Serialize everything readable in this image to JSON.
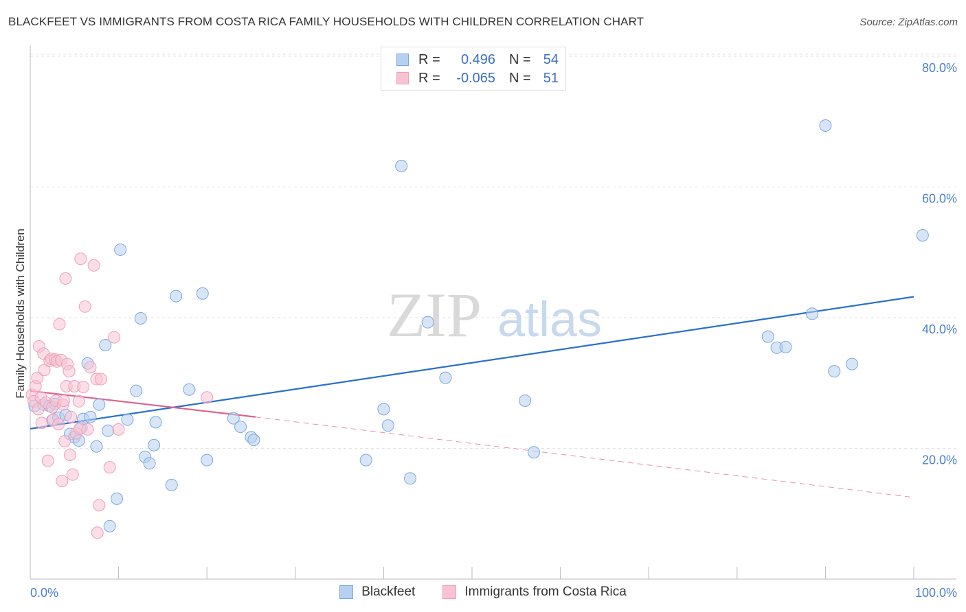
{
  "chart_data": {
    "type": "scatter",
    "title": "BLACKFEET VS IMMIGRANTS FROM COSTA RICA FAMILY HOUSEHOLDS WITH CHILDREN CORRELATION CHART",
    "source": "Source: ZipAtlas.com",
    "xlabel": "",
    "ylabel": "Family Households with Children",
    "xlim": [
      0,
      100
    ],
    "ylim": [
      0,
      85
    ],
    "x_tick_labels": {
      "left": "0.0%",
      "right": "100.0%"
    },
    "y_ticks": [
      {
        "value": 20,
        "label": "20.0%"
      },
      {
        "value": 40,
        "label": "40.0%"
      },
      {
        "value": 60,
        "label": "60.0%"
      },
      {
        "value": 80,
        "label": "80.0%"
      }
    ],
    "watermark": {
      "part1": "ZIP",
      "part2": "atlas"
    },
    "legend": [
      {
        "name": "Blackfeet",
        "r_label": "R =",
        "r_value": "0.496",
        "n_label": "N =",
        "n_value": "54"
      },
      {
        "name": "Immigrants from Costa Rica",
        "r_label": "R =",
        "r_value": "-0.065",
        "n_label": "N =",
        "n_value": "51"
      }
    ],
    "series": [
      {
        "name": "Blackfeet",
        "color": "#7aa8e0",
        "fill": "#b8d0ef",
        "trend": {
          "x1": 0,
          "y1": 23.0,
          "x2": 100,
          "y2": 43.2,
          "color": "#2a6fce"
        },
        "points": [
          [
            0.5,
            26.5
          ],
          [
            1.5,
            26.7
          ],
          [
            2.2,
            26.5
          ],
          [
            2.8,
            26.8
          ],
          [
            2.5,
            24.3
          ],
          [
            3.2,
            24.7
          ],
          [
            4.0,
            25.1
          ],
          [
            4.5,
            22.2
          ],
          [
            5.0,
            21.7
          ],
          [
            5.5,
            21.2
          ],
          [
            5.8,
            23.2
          ],
          [
            6.0,
            24.5
          ],
          [
            6.5,
            33.0
          ],
          [
            6.8,
            24.8
          ],
          [
            7.5,
            20.3
          ],
          [
            7.8,
            26.7
          ],
          [
            8.5,
            35.8
          ],
          [
            8.8,
            22.7
          ],
          [
            9.0,
            8.1
          ],
          [
            9.8,
            12.3
          ],
          [
            10.2,
            50.4
          ],
          [
            11.0,
            24.4
          ],
          [
            12.0,
            28.8
          ],
          [
            12.5,
            39.9
          ],
          [
            13.0,
            18.7
          ],
          [
            13.5,
            17.7
          ],
          [
            14.0,
            20.5
          ],
          [
            14.2,
            24.0
          ],
          [
            16.0,
            14.4
          ],
          [
            16.5,
            43.3
          ],
          [
            18.0,
            29.0
          ],
          [
            19.5,
            43.7
          ],
          [
            20.0,
            18.2
          ],
          [
            23.0,
            24.6
          ],
          [
            23.8,
            23.3
          ],
          [
            25.0,
            21.7
          ],
          [
            25.3,
            21.3
          ],
          [
            42.0,
            63.2
          ],
          [
            45.0,
            39.3
          ],
          [
            47.0,
            30.8
          ],
          [
            40.0,
            26.0
          ],
          [
            38.0,
            18.2
          ],
          [
            40.5,
            23.5
          ],
          [
            43.0,
            15.4
          ],
          [
            56.0,
            27.3
          ],
          [
            57.0,
            19.4
          ],
          [
            83.5,
            37.1
          ],
          [
            84.5,
            35.4
          ],
          [
            85.5,
            35.5
          ],
          [
            88.5,
            40.6
          ],
          [
            90.0,
            69.4
          ],
          [
            91.0,
            31.8
          ],
          [
            93.0,
            32.9
          ],
          [
            101.0,
            52.6
          ]
        ]
      },
      {
        "name": "Immigrants from Costa Rica",
        "color": "#f0a0b8",
        "fill": "#f7c3d3",
        "trend": {
          "x1": 0,
          "y1": 28.8,
          "x2": 25.5,
          "y2": 24.8,
          "color": "#e0608a"
        },
        "trend_dashed": {
          "x1": 25.5,
          "y1": 24.8,
          "x2": 100,
          "y2": 12.5,
          "color": "#e58fa9"
        },
        "points": [
          [
            0.2,
            28.2
          ],
          [
            0.4,
            27.2
          ],
          [
            0.6,
            29.5
          ],
          [
            0.8,
            30.8
          ],
          [
            0.9,
            26.0
          ],
          [
            1.0,
            35.6
          ],
          [
            1.2,
            27.8
          ],
          [
            1.3,
            23.9
          ],
          [
            1.5,
            34.5
          ],
          [
            1.6,
            32.0
          ],
          [
            1.8,
            27.0
          ],
          [
            2.0,
            18.1
          ],
          [
            2.2,
            33.4
          ],
          [
            2.4,
            33.7
          ],
          [
            2.5,
            26.3
          ],
          [
            2.6,
            24.4
          ],
          [
            2.8,
            33.6
          ],
          [
            2.9,
            27.3
          ],
          [
            3.0,
            33.3
          ],
          [
            3.2,
            23.7
          ],
          [
            3.3,
            39.0
          ],
          [
            3.5,
            33.5
          ],
          [
            3.6,
            15.0
          ],
          [
            3.7,
            26.7
          ],
          [
            3.8,
            27.3
          ],
          [
            3.9,
            21.1
          ],
          [
            4.0,
            46.0
          ],
          [
            4.1,
            29.5
          ],
          [
            4.2,
            32.9
          ],
          [
            4.4,
            31.8
          ],
          [
            4.5,
            19.0
          ],
          [
            4.6,
            24.8
          ],
          [
            4.8,
            16.0
          ],
          [
            5.0,
            29.5
          ],
          [
            5.2,
            22.3
          ],
          [
            5.5,
            27.2
          ],
          [
            5.6,
            23.0
          ],
          [
            5.7,
            49.0
          ],
          [
            6.0,
            29.4
          ],
          [
            6.2,
            41.7
          ],
          [
            6.5,
            22.9
          ],
          [
            6.8,
            32.4
          ],
          [
            7.2,
            48.0
          ],
          [
            7.5,
            30.6
          ],
          [
            7.6,
            7.1
          ],
          [
            7.8,
            11.3
          ],
          [
            8.0,
            30.6
          ],
          [
            9.0,
            17.1
          ],
          [
            9.5,
            37.0
          ],
          [
            10.0,
            22.9
          ],
          [
            20.0,
            27.8
          ]
        ]
      }
    ]
  }
}
